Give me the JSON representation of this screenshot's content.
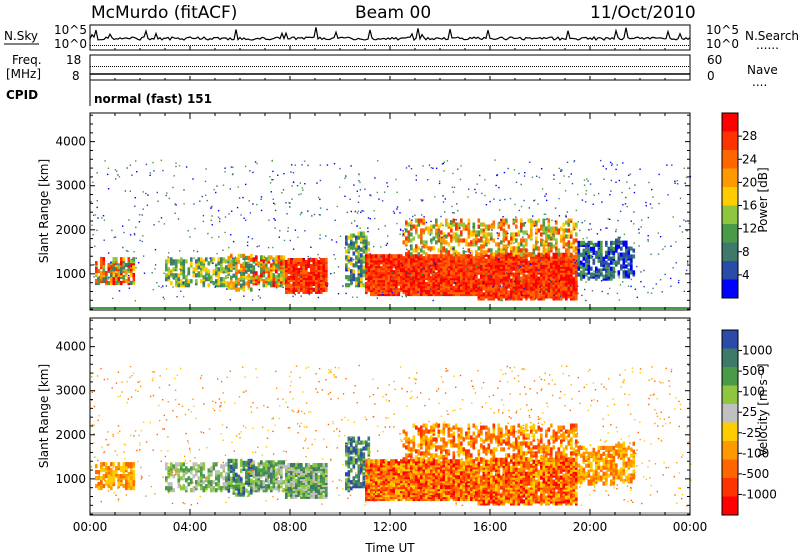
{
  "header": {
    "station": "McMurdo (fitACF)",
    "beam": "Beam 00",
    "date": "11/Oct/2010"
  },
  "summary": {
    "nsky_label": "N.Sky",
    "nsearch_label": "N.Search",
    "nsearch_dots": "......",
    "count_ticks": [
      "10^5",
      "10^0"
    ],
    "freq_label": "Freq.",
    "freq_unit": "[MHz]",
    "freq_ticks": [
      "18",
      "8"
    ],
    "nave_label": "Nave",
    "nave_dots": "....",
    "nave_ticks": [
      "60",
      "0"
    ],
    "cpid_label": "CPID",
    "cpid_value": "normal (fast) 151"
  },
  "colors": {
    "power": [
      "#0000ff",
      "#2a4ba8",
      "#3d7a6a",
      "#4a9a4a",
      "#8ec63f",
      "#ffcc00",
      "#ff9900",
      "#ff6600",
      "#ff3300",
      "#ff0000"
    ],
    "velocity": [
      "#2a4ba8",
      "#3d7a6a",
      "#4a9a4a",
      "#8ec63f",
      "#c0c0c0",
      "#ffcc00",
      "#ff9900",
      "#ff6600",
      "#ff3300",
      "#ff0000"
    ]
  },
  "chart_data": [
    {
      "type": "heatmap",
      "name": "power",
      "ylabel": "Slant Range [km]",
      "xlabel": "",
      "x_ticks": [
        "00:00",
        "04:00",
        "08:00",
        "12:00",
        "16:00",
        "20:00",
        "00:00"
      ],
      "xlim_hours": [
        0,
        24
      ],
      "ylim_km": [
        180,
        4650
      ],
      "y_ticks": [
        1000,
        2000,
        3000,
        4000
      ],
      "colorbar_label": "Power [dB]",
      "colorbar_ticks": [
        "4",
        "8",
        "12",
        "16",
        "20",
        "24",
        "28"
      ],
      "colorbar_range": [
        0,
        32
      ]
    },
    {
      "type": "heatmap",
      "name": "velocity",
      "ylabel": "Slant Range [km]",
      "xlabel": "Time UT",
      "x_ticks": [
        "00:00",
        "04:00",
        "08:00",
        "12:00",
        "16:00",
        "20:00",
        "00:00"
      ],
      "xlim_hours": [
        0,
        24
      ],
      "ylim_km": [
        180,
        4650
      ],
      "y_ticks": [
        1000,
        2000,
        3000,
        4000
      ],
      "colorbar_label": "Velocity [m s⁻¹]",
      "colorbar_ticks": [
        "1000",
        "500",
        "100",
        "25",
        "-25",
        "-100",
        "-500",
        "-1000"
      ]
    }
  ]
}
